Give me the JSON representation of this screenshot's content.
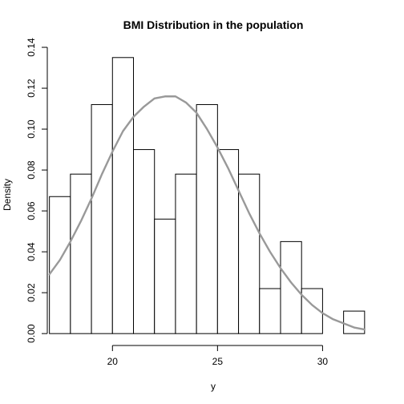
{
  "chart_data": {
    "type": "bar",
    "title": "BMI Distribution in the population",
    "xlabel": "y",
    "ylabel": "Density",
    "xlim": [
      16.9,
      32.2
    ],
    "ylim": [
      0,
      0.14
    ],
    "x_ticks": [
      20,
      25,
      30
    ],
    "y_ticks": [
      0.0,
      0.02,
      0.04,
      0.06,
      0.08,
      0.1,
      0.12,
      0.14
    ],
    "y_tick_labels": [
      "0.00",
      "0.02",
      "0.04",
      "0.06",
      "0.08",
      "0.10",
      "0.12",
      "0.14"
    ],
    "bins": [
      {
        "x0": 17,
        "x1": 18,
        "density": 0.067
      },
      {
        "x0": 18,
        "x1": 19,
        "density": 0.078
      },
      {
        "x0": 19,
        "x1": 20,
        "density": 0.112
      },
      {
        "x0": 20,
        "x1": 21,
        "density": 0.135
      },
      {
        "x0": 21,
        "x1": 22,
        "density": 0.09
      },
      {
        "x0": 22,
        "x1": 23,
        "density": 0.056
      },
      {
        "x0": 23,
        "x1": 24,
        "density": 0.078
      },
      {
        "x0": 24,
        "x1": 25,
        "density": 0.112
      },
      {
        "x0": 25,
        "x1": 26,
        "density": 0.09
      },
      {
        "x0": 26,
        "x1": 27,
        "density": 0.078
      },
      {
        "x0": 27,
        "x1": 28,
        "density": 0.022
      },
      {
        "x0": 28,
        "x1": 29,
        "density": 0.045
      },
      {
        "x0": 29,
        "x1": 30,
        "density": 0.022
      },
      {
        "x0": 30,
        "x1": 31,
        "density": 0.0
      },
      {
        "x0": 31,
        "x1": 32,
        "density": 0.011
      }
    ],
    "density_curve": {
      "x": [
        17,
        17.5,
        18,
        18.5,
        19,
        19.5,
        20,
        20.5,
        21,
        21.5,
        22,
        22.5,
        23,
        23.5,
        24,
        24.5,
        25,
        25.5,
        26,
        26.5,
        27,
        27.5,
        28,
        28.5,
        29,
        29.5,
        30,
        30.5,
        31,
        31.5,
        32
      ],
      "y": [
        0.029,
        0.036,
        0.045,
        0.055,
        0.066,
        0.078,
        0.089,
        0.099,
        0.106,
        0.111,
        0.115,
        0.116,
        0.116,
        0.113,
        0.108,
        0.1,
        0.091,
        0.081,
        0.07,
        0.059,
        0.049,
        0.04,
        0.032,
        0.025,
        0.019,
        0.014,
        0.01,
        0.007,
        0.005,
        0.003,
        0.002
      ]
    },
    "colors": {
      "bar_fill": "#ffffff",
      "bar_stroke": "#000000",
      "curve": "#999999"
    },
    "grid": false,
    "legend": "none"
  }
}
